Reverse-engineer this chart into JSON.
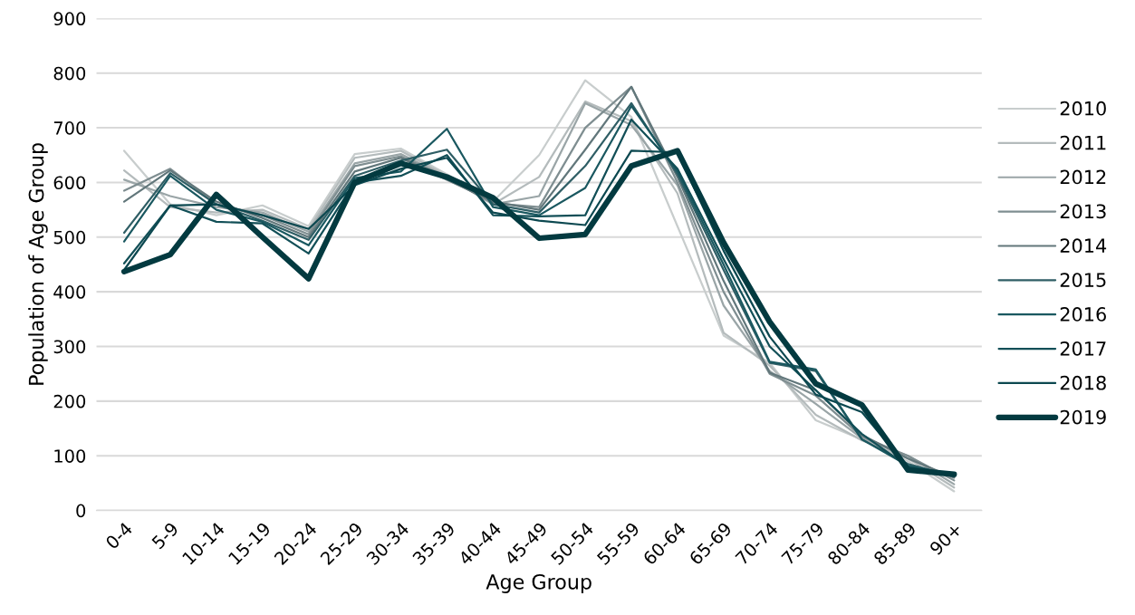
{
  "chart_data": {
    "type": "line",
    "xlabel": "Age Group",
    "ylabel": "Population of Age Group",
    "categories": [
      "0-4",
      "5-9",
      "10-14",
      "15-19",
      "20-24",
      "25-29",
      "30-34",
      "35-39",
      "40-44",
      "45-49",
      "50-54",
      "55-59",
      "60-64",
      "65-69",
      "70-74",
      "75-79",
      "80-84",
      "85-89",
      "90+"
    ],
    "ylim": [
      0,
      900
    ],
    "yticks": [
      0,
      100,
      200,
      300,
      400,
      500,
      600,
      700,
      800,
      900
    ],
    "grid": "y",
    "legend": "right",
    "marker": "none",
    "line_style": "solid",
    "series": [
      {
        "name": "2010",
        "color": "#c8cdcd",
        "values": [
          658,
          560,
          540,
          558,
          520,
          652,
          662,
          615,
          565,
          650,
          787,
          720,
          520,
          320,
          270,
          165,
          130,
          90,
          35
        ]
      },
      {
        "name": "2011",
        "color": "#b4bbbc",
        "values": [
          622,
          555,
          545,
          550,
          515,
          645,
          658,
          612,
          560,
          610,
          748,
          712,
          580,
          325,
          265,
          175,
          128,
          95,
          42
        ]
      },
      {
        "name": "2012",
        "color": "#9aa5a7",
        "values": [
          605,
          575,
          555,
          545,
          510,
          635,
          652,
          610,
          560,
          575,
          745,
          705,
          595,
          375,
          255,
          195,
          132,
          100,
          48
        ]
      },
      {
        "name": "2013",
        "color": "#7f8e91",
        "values": [
          585,
          625,
          560,
          540,
          505,
          630,
          648,
          608,
          562,
          555,
          700,
          775,
          600,
          400,
          250,
          210,
          135,
          100,
          55
        ]
      },
      {
        "name": "2014",
        "color": "#62777b",
        "values": [
          565,
          622,
          565,
          535,
          500,
          620,
          645,
          605,
          565,
          550,
          660,
          775,
          610,
          420,
          252,
          220,
          138,
          95,
          60
        ]
      },
      {
        "name": "2015",
        "color": "#2f5e65",
        "values": [
          508,
          617,
          560,
          530,
          495,
          612,
          640,
          660,
          560,
          545,
          630,
          745,
          615,
          440,
          270,
          255,
          130,
          85,
          62
        ]
      },
      {
        "name": "2016",
        "color": "#1a5860",
        "values": [
          492,
          612,
          550,
          528,
          485,
          608,
          620,
          698,
          555,
          540,
          590,
          740,
          620,
          450,
          272,
          258,
          130,
          82,
          64
        ]
      },
      {
        "name": "2017",
        "color": "#124f57",
        "values": [
          452,
          558,
          528,
          525,
          470,
          600,
          612,
          650,
          540,
          538,
          540,
          715,
          625,
          460,
          300,
          220,
          140,
          80,
          65
        ]
      },
      {
        "name": "2018",
        "color": "#0c4850",
        "values": [
          440,
          558,
          560,
          540,
          515,
          595,
          625,
          645,
          545,
          530,
          522,
          658,
          655,
          475,
          318,
          212,
          180,
          78,
          65
        ]
      },
      {
        "name": "2019",
        "color": "#033a40",
        "values": [
          437,
          468,
          578,
          500,
          424,
          600,
          635,
          610,
          572,
          498,
          505,
          630,
          658,
          490,
          345,
          232,
          193,
          74,
          66
        ]
      }
    ]
  }
}
